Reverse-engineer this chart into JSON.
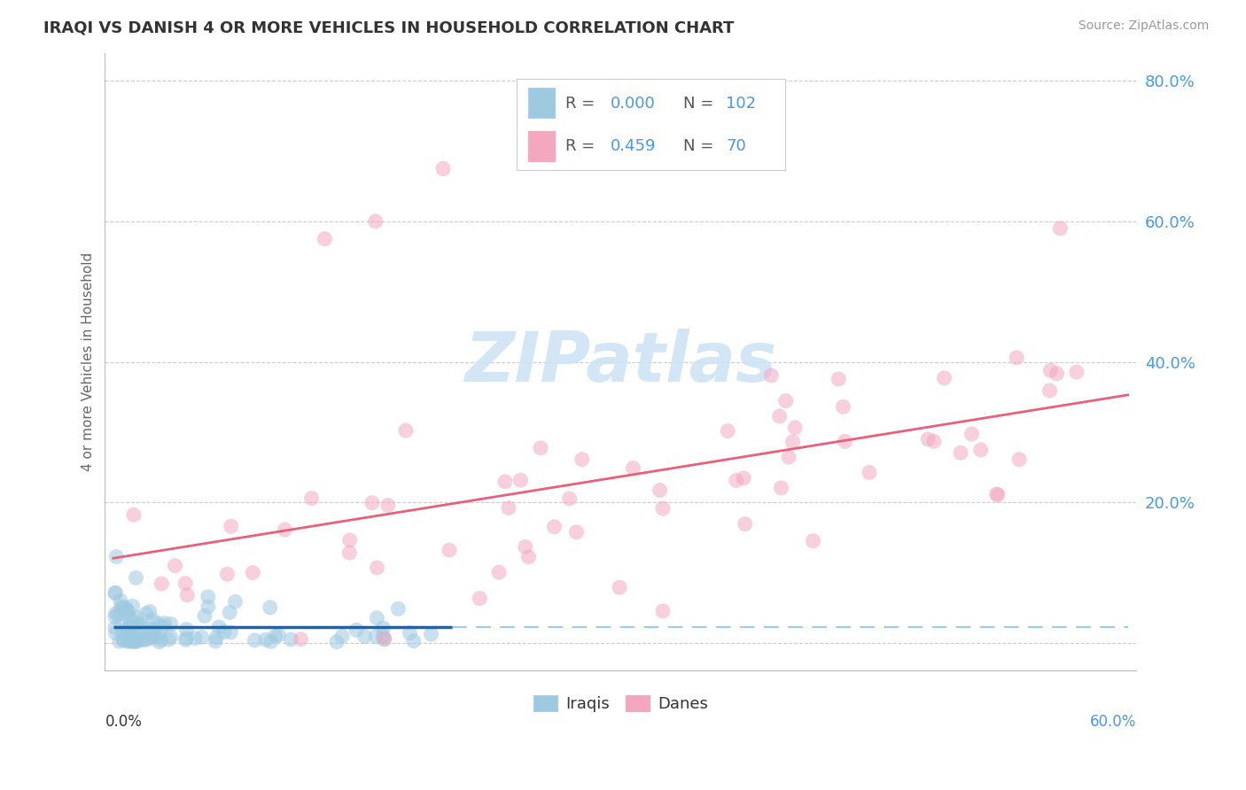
{
  "title": "IRAQI VS DANISH 4 OR MORE VEHICLES IN HOUSEHOLD CORRELATION CHART",
  "source": "Source: ZipAtlas.com",
  "ylabel": "4 or more Vehicles in Household",
  "xlim": [
    -0.005,
    0.605
  ],
  "ylim": [
    -0.04,
    0.84
  ],
  "ytick_vals": [
    0.0,
    0.2,
    0.4,
    0.6,
    0.8
  ],
  "ytick_labels": [
    "",
    "20.0%",
    "40.0%",
    "60.0%",
    "80.0%"
  ],
  "legend_R1": "0.000",
  "legend_N1": "102",
  "legend_R2": "0.459",
  "legend_N2": "70",
  "legend_label1": "Iraqis",
  "legend_label2": "Danes",
  "iraqi_color": "#9ecae1",
  "dane_color": "#f4a8c0",
  "line_color_iraqi": "#1665b0",
  "line_color_dane": "#e8607a",
  "watermark_color": "#cde4f5",
  "background_color": "#ffffff",
  "title_color": "#333333",
  "source_color": "#999999",
  "tick_color": "#4499ee",
  "label_color": "#666666",
  "grid_color": "#cccccc"
}
